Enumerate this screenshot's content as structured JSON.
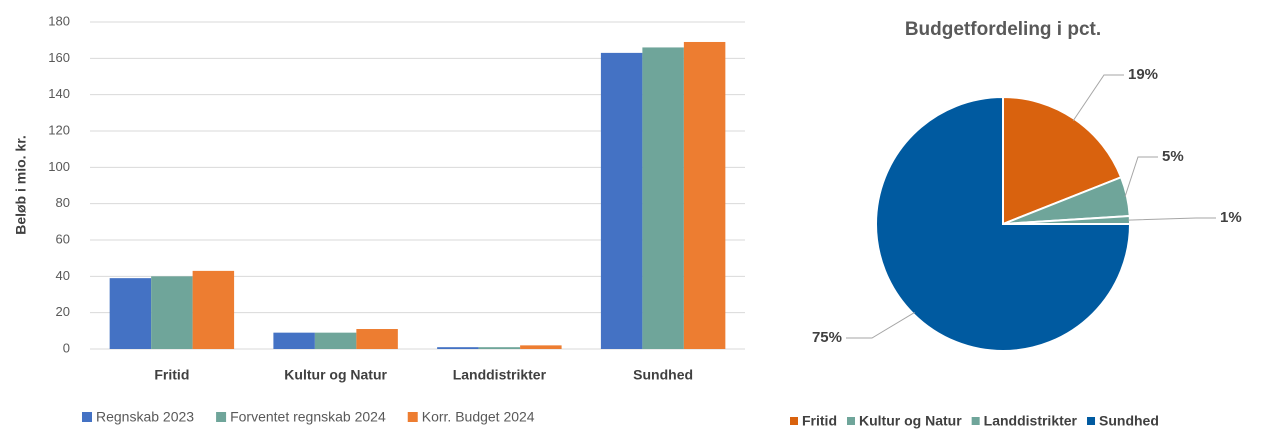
{
  "chart_data": [
    {
      "type": "bar",
      "y_label": "Beløb i mio. kr.",
      "categories": [
        "Fritid",
        "Kultur og Natur",
        "Landdistrikter",
        "Sundhed"
      ],
      "series": [
        {
          "name": "Regnskab 2023",
          "color": "#4472c4",
          "values": [
            39,
            9,
            1,
            163
          ]
        },
        {
          "name": "Forventet regnskab 2024",
          "color": "#6fa59a",
          "values": [
            40,
            9,
            1,
            166
          ]
        },
        {
          "name": "Korr. Budget 2024",
          "color": "#ed7d31",
          "values": [
            43,
            11,
            2,
            169
          ]
        }
      ],
      "ylim": [
        0,
        180
      ],
      "yticks": [
        0,
        20,
        40,
        60,
        80,
        100,
        120,
        140,
        160,
        180
      ],
      "grid": true,
      "legend": "bottom"
    },
    {
      "type": "pie",
      "title": "Budgetfordeling i pct.",
      "categories": [
        "Fritid",
        "Kultur og Natur",
        "Landdistrikter",
        "Sundhed"
      ],
      "values": [
        19,
        5,
        1,
        75
      ],
      "value_labels": [
        "19%",
        "5%",
        "1%",
        "75%"
      ],
      "colors": [
        "#d9620e",
        "#6fa59a",
        "#6fa59a",
        "#005aa0"
      ],
      "legend": "bottom"
    }
  ]
}
